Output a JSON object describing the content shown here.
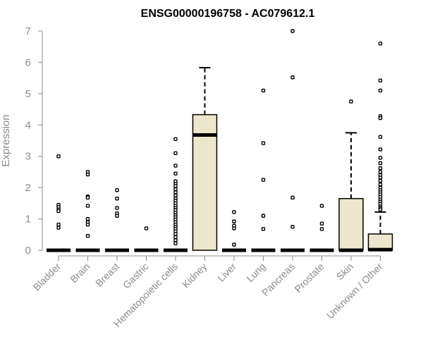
{
  "chart_data": {
    "type": "boxplot",
    "title": "ENSG00000196758 - AC079612.1",
    "xlabel": "",
    "ylabel": "Expression",
    "ylim": [
      0,
      7
    ],
    "yticks": [
      "0",
      "1",
      "2",
      "3",
      "4",
      "5",
      "6",
      "7"
    ],
    "grid": false,
    "legend": "none",
    "colors": {
      "box_fill": "#ece6cc",
      "box_stroke": "#000000",
      "axis": "#8c8c8c",
      "title": "#000000"
    },
    "categories": [
      "Bladder",
      "Brain",
      "Breast",
      "Gastric",
      "Hematopoietic cells",
      "Kidney",
      "Liver",
      "Lung",
      "Pancreas",
      "Prostate",
      "Skin",
      "Unknown / Other"
    ],
    "boxes": [
      {
        "q1": 0,
        "median": 0,
        "q3": 0,
        "whisker_low": 0,
        "whisker_high": 0,
        "outliers": [
          3.0,
          1.45,
          1.38,
          1.3,
          1.25,
          0.82,
          0.72
        ]
      },
      {
        "q1": 0,
        "median": 0,
        "q3": 0,
        "whisker_low": 0,
        "whisker_high": 0,
        "outliers": [
          2.5,
          2.42,
          1.72,
          1.68,
          1.42,
          1.0,
          0.9,
          0.82,
          0.46
        ]
      },
      {
        "q1": 0,
        "median": 0,
        "q3": 0,
        "whisker_low": 0,
        "whisker_high": 0,
        "outliers": [
          1.92,
          1.65,
          1.35,
          1.18,
          1.1
        ]
      },
      {
        "q1": 0,
        "median": 0,
        "q3": 0,
        "whisker_low": 0,
        "whisker_high": 0,
        "outliers": [
          0.7
        ]
      },
      {
        "q1": 0,
        "median": 0,
        "q3": 0,
        "whisker_low": 0,
        "whisker_high": 0,
        "outliers": [
          3.55,
          3.1,
          2.7,
          2.45,
          2.2,
          2.12,
          2.05,
          1.95,
          1.85,
          1.75,
          1.65,
          1.58,
          1.5,
          1.42,
          1.35,
          1.28,
          1.2,
          1.12,
          1.05,
          0.98,
          0.9,
          0.82,
          0.75,
          0.68,
          0.6,
          0.52,
          0.42,
          0.32,
          0.22
        ]
      },
      {
        "q1": 0,
        "median": 3.68,
        "q3": 4.33,
        "whisker_low": 0,
        "whisker_high": 5.83,
        "outliers": []
      },
      {
        "q1": 0,
        "median": 0,
        "q3": 0,
        "whisker_low": 0,
        "whisker_high": 0,
        "outliers": [
          1.22,
          0.92,
          0.78,
          0.7,
          0.18
        ]
      },
      {
        "q1": 0,
        "median": 0,
        "q3": 0,
        "whisker_low": 0,
        "whisker_high": 0,
        "outliers": [
          5.1,
          3.42,
          2.25,
          1.1,
          0.68
        ]
      },
      {
        "q1": 0,
        "median": 0,
        "q3": 0,
        "whisker_low": 0,
        "whisker_high": 0,
        "outliers": [
          7.0,
          5.52,
          1.68,
          0.75
        ]
      },
      {
        "q1": 0,
        "median": 0,
        "q3": 0,
        "whisker_low": 0,
        "whisker_high": 0,
        "outliers": [
          1.42,
          0.85,
          0.68
        ]
      },
      {
        "q1": 0,
        "median": 0,
        "q3": 1.65,
        "whisker_low": 0,
        "whisker_high": 3.75,
        "outliers": [
          4.75
        ]
      },
      {
        "q1": 0,
        "median": 0.02,
        "q3": 0.52,
        "whisker_low": 0,
        "whisker_high": 1.22,
        "outliers": [
          6.6,
          5.42,
          5.1,
          4.28,
          4.22,
          3.62,
          3.22,
          2.95,
          2.78,
          2.62,
          2.5,
          2.4,
          2.32,
          2.22,
          2.1,
          2.0,
          1.92,
          1.85,
          1.78,
          1.7,
          1.62,
          1.55,
          1.48,
          1.4,
          1.35,
          1.3
        ]
      }
    ]
  }
}
